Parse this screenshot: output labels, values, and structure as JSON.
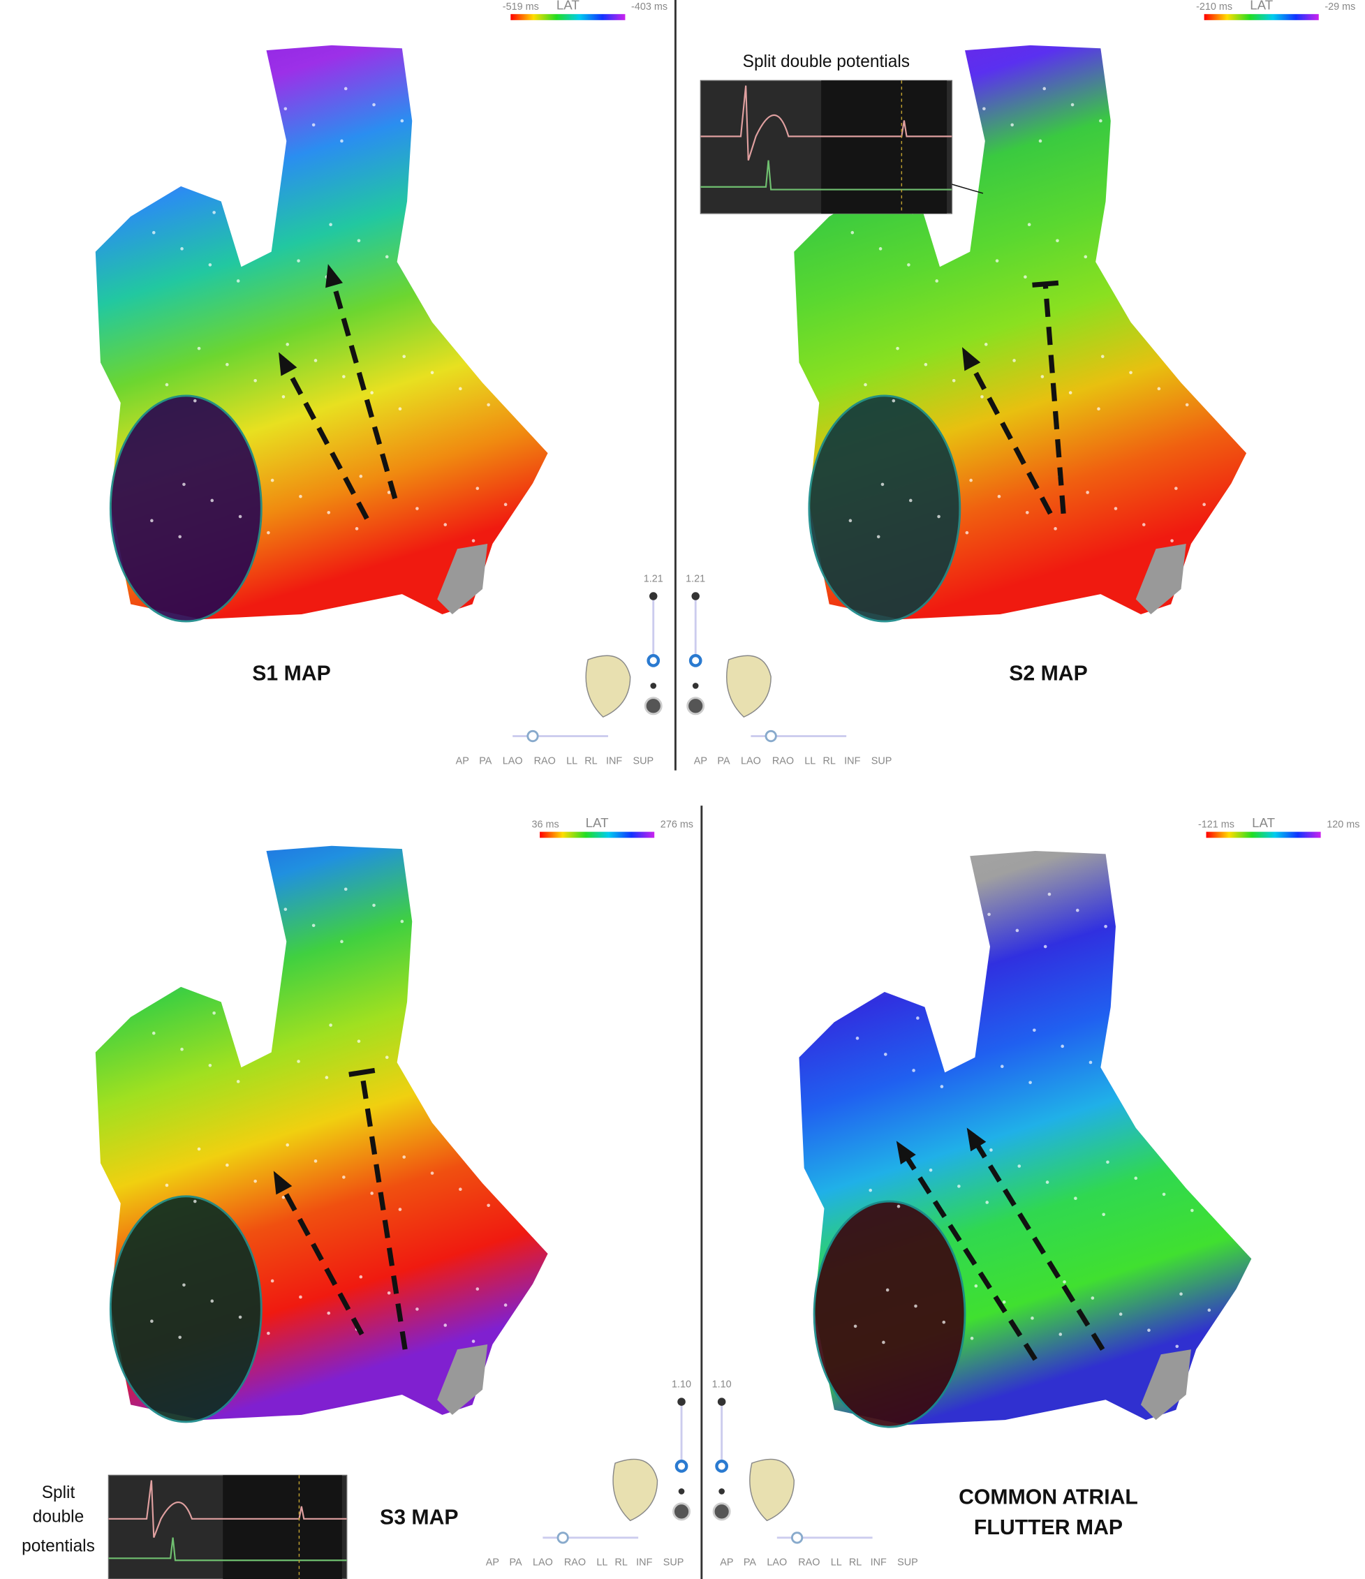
{
  "panels": [
    {
      "colorbar": {
        "min": "-519 ms",
        "label": "LAT",
        "max": "-403 ms"
      },
      "title": [
        "S1 MAP"
      ],
      "zoom": "1.21"
    },
    {
      "colorbar": {
        "min": "-210 ms",
        "label": "LAT",
        "max": "-29 ms"
      },
      "title": [
        "S2 MAP"
      ],
      "zoom": "1.21"
    },
    {
      "colorbar": {
        "min": "36 ms",
        "label": "LAT",
        "max": "276 ms"
      },
      "title": [
        "S3 MAP"
      ],
      "zoom": "1.10"
    },
    {
      "colorbar": {
        "min": "-121 ms",
        "label": "LAT",
        "max": "120 ms"
      },
      "title": [
        "COMMON ATRIAL",
        "FLUTTER MAP"
      ],
      "zoom": "1.10"
    }
  ],
  "view_buttons": [
    "AP",
    "PA",
    "LAO",
    "RAO",
    "LL",
    "RL",
    "INF",
    "SUP"
  ],
  "annotations": [
    {
      "lines": [
        "Split double potentials"
      ]
    },
    {
      "lines": [
        "Split",
        "double",
        "potentials"
      ]
    }
  ]
}
